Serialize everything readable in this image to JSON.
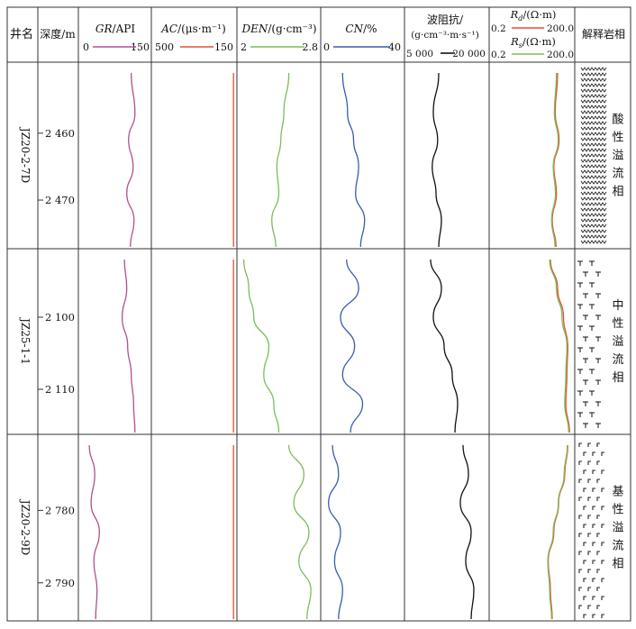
{
  "header": {
    "well": "井名",
    "depth": "深度/m",
    "gr": {
      "name": "GR",
      "unit": "/API",
      "min": "0",
      "max": "150"
    },
    "ac": {
      "name": "AC",
      "unit": "/(μs·m⁻¹)",
      "min": "500",
      "max": "150"
    },
    "den": {
      "name": "DEN",
      "unit": "/(g·cm⁻³)",
      "min": "2",
      "max": "2.8"
    },
    "cn": {
      "name": "CN",
      "unit": "/%",
      "min": "0",
      "max": "40"
    },
    "imp": {
      "line1": "波阻抗/",
      "line2": "(g·cm⁻³·m·s⁻¹)",
      "min": "5 000",
      "max": "20 000"
    },
    "res": {
      "rd_name": "R",
      "rd_sub": "d",
      "rd_unit": "/(Ω·m)",
      "rd_min": "0.2",
      "rd_max": "200.0",
      "rs_name": "R",
      "rs_sub": "s",
      "rs_unit": "/(Ω·m)",
      "rs_min": "0.2",
      "rs_max": "200.0"
    },
    "litho": "解释岩相"
  },
  "colors": {
    "gr": "#b0508f",
    "ac": "#e2502e",
    "den": "#7dbb5c",
    "cn": "#3b5bb0",
    "imp": "#111111",
    "rd": "#e2502e",
    "rs": "#7dbb5c"
  },
  "chart_data": {
    "type": "line",
    "tracks": [
      "GR",
      "AC",
      "DEN",
      "CN",
      "波阻抗",
      "Rd",
      "Rs"
    ],
    "sections": [
      {
        "well": "JZ20-2-7D",
        "depth_ticks": [
          2460,
          2470
        ],
        "depth_tick_labels": [
          "2 460",
          "2 470"
        ],
        "facies_label": "酸性溢流相",
        "facies_symbol": "zigzag",
        "depth": [
          2451,
          2457,
          2461,
          2465,
          2469,
          2473,
          2477
        ],
        "gr": [
          110,
          118,
          104,
          114,
          100,
          116,
          108
        ],
        "ac": [
          148,
          150,
          146,
          152,
          147,
          150,
          148
        ],
        "den": [
          2.5,
          2.45,
          2.42,
          2.38,
          2.4,
          2.33,
          2.37
        ],
        "cn": [
          10.0,
          12.5,
          15.5,
          18.0,
          16.5,
          21.0,
          19.0
        ],
        "imp": [
          11000,
          10000,
          10800,
          9800,
          10500,
          11500,
          11000
        ],
        "rd": [
          55,
          45,
          62,
          40,
          50,
          35,
          48
        ],
        "rs": [
          50,
          42,
          58,
          38,
          46,
          33,
          44
        ]
      },
      {
        "well": "JZ25-1-1",
        "depth_ticks": [
          2100,
          2110
        ],
        "depth_tick_labels": [
          "2 100",
          "2 110"
        ],
        "facies_label": "中性溢流相",
        "facies_symbol": "tee",
        "depth": [
          2092,
          2096,
          2100,
          2104,
          2108,
          2112,
          2116
        ],
        "gr": [
          95,
          100,
          90,
          102,
          110,
          115,
          118
        ],
        "ac": [
          140,
          145,
          150,
          146,
          149,
          144,
          150
        ],
        "den": [
          2.05,
          2.1,
          2.15,
          2.3,
          2.25,
          2.35,
          2.4
        ],
        "cn": [
          12,
          18,
          9,
          16,
          10,
          20,
          14
        ],
        "imp": [
          9500,
          11500,
          10000,
          12000,
          13500,
          14500,
          14000
        ],
        "rd": [
          30,
          55,
          90,
          130,
          120,
          110,
          150
        ],
        "rs": [
          28,
          50,
          80,
          120,
          110,
          100,
          140
        ]
      },
      {
        "well": "JZ20-2-9D",
        "depth_ticks": [
          2780,
          2790
        ],
        "depth_tick_labels": [
          "2 780",
          "2 790"
        ],
        "facies_label": "基性溢流相",
        "facies_symbol": "hook",
        "depth": [
          2771,
          2775,
          2779,
          2783,
          2787,
          2791,
          2795
        ],
        "gr": [
          18,
          30,
          22,
          40,
          28,
          35,
          32
        ],
        "ac": [
          148,
          147,
          150,
          149,
          151,
          150,
          152
        ],
        "den": [
          2.5,
          2.65,
          2.55,
          2.7,
          2.6,
          2.72,
          2.68
        ],
        "cn": [
          5,
          8,
          3,
          9,
          6,
          10,
          8
        ],
        "imp": [
          15500,
          16500,
          15000,
          17000,
          16000,
          17500,
          17000
        ],
        "rd": [
          130,
          100,
          60,
          40,
          25,
          30,
          35
        ],
        "rs": [
          125,
          95,
          58,
          38,
          24,
          28,
          33
        ]
      }
    ]
  }
}
